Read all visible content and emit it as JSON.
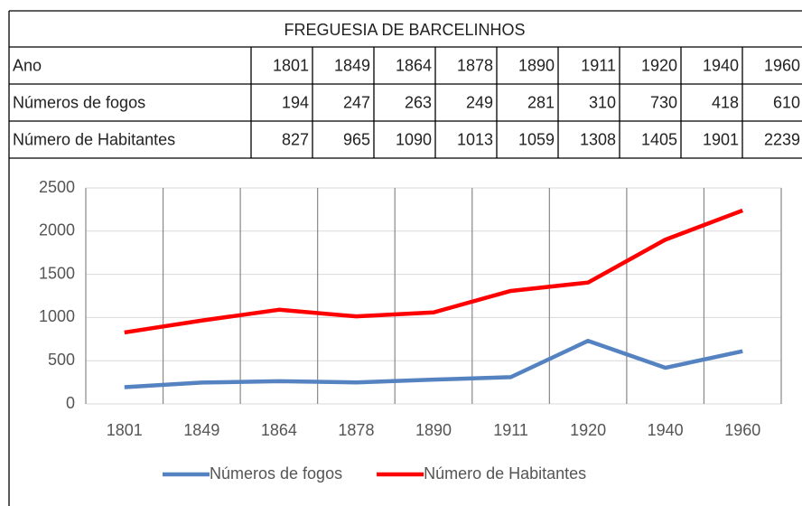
{
  "table": {
    "title": "FREGUESIA DE BARCELINHOS",
    "rows": [
      [
        "Ano",
        "1801",
        "1849",
        "1864",
        "1878",
        "1890",
        "1911",
        "1920",
        "1940",
        "1960"
      ],
      [
        "Números de fogos",
        "194",
        "247",
        "263",
        "249",
        "281",
        "310",
        "730",
        "418",
        "610"
      ],
      [
        "Número de Habitantes",
        "827",
        "965",
        "1090",
        "1013",
        "1059",
        "1308",
        "1405",
        "1901",
        "2239"
      ]
    ]
  },
  "chart_data": {
    "type": "line",
    "categories": [
      "1801",
      "1849",
      "1864",
      "1878",
      "1890",
      "1911",
      "1920",
      "1940",
      "1960"
    ],
    "series": [
      {
        "name": "Números de fogos",
        "color": "#5583c1",
        "values": [
          194,
          247,
          263,
          249,
          281,
          310,
          730,
          418,
          610
        ]
      },
      {
        "name": "Número de Habitantes",
        "color": "#ff0000",
        "values": [
          827,
          965,
          1090,
          1013,
          1059,
          1308,
          1405,
          1901,
          2239
        ]
      }
    ],
    "ylim": [
      0,
      2500
    ],
    "yticks": [
      0,
      500,
      1000,
      1500,
      2000,
      2500
    ],
    "grid": true,
    "legend": "bottom"
  }
}
